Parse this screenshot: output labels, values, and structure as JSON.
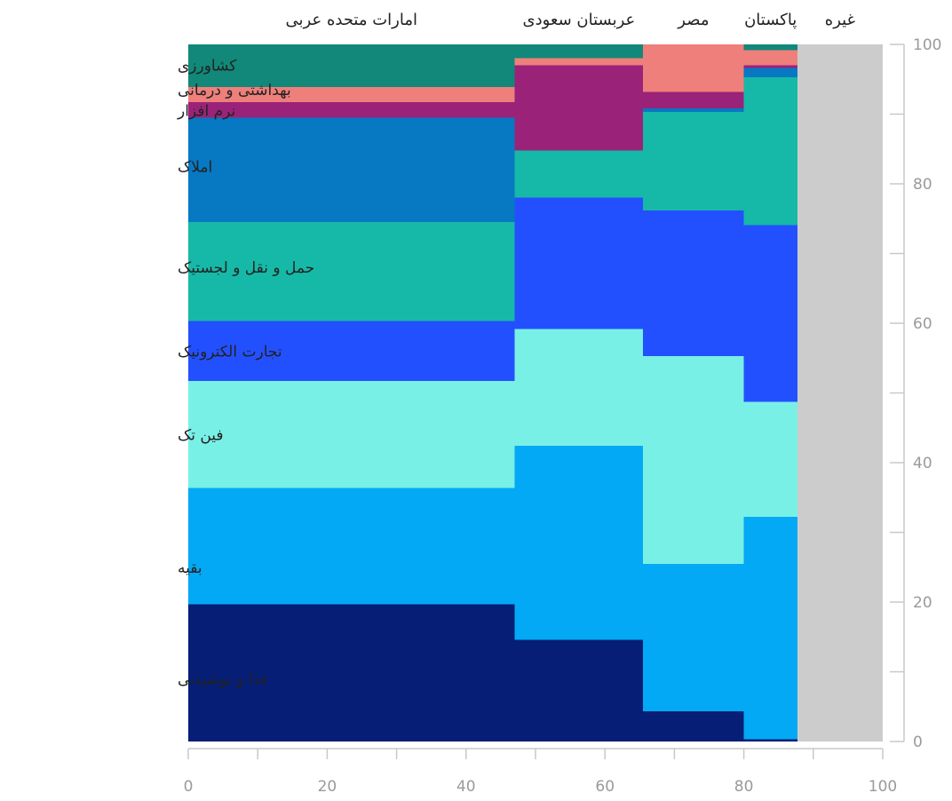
{
  "chart_data": {
    "type": "marimekko",
    "x_axis": {
      "range": [
        0,
        100
      ],
      "ticks": [
        0,
        20,
        40,
        60,
        80,
        100
      ],
      "minor_ticks": [
        10,
        30,
        50,
        70,
        90
      ]
    },
    "y_axis": {
      "range": [
        0,
        100
      ],
      "ticks": [
        0,
        20,
        40,
        60,
        80,
        100
      ],
      "minor_ticks": [
        10,
        30,
        50,
        70,
        90
      ],
      "position": "right"
    },
    "grid": false,
    "categories": [
      {
        "name": "غذا و نوشیدنی",
        "color": "#061e76"
      },
      {
        "name": "بقیه",
        "color": "#03a9f4"
      },
      {
        "name": "فین تک",
        "color": "#79f0e6"
      },
      {
        "name": "تجارت الکترونیک",
        "color": "#2350ff"
      },
      {
        "name": "حمل و نقل و لجستیک",
        "color": "#16b9a7"
      },
      {
        "name": "املاک",
        "color": "#0778c2"
      },
      {
        "name": "نرم افزار",
        "color": "#9b2279"
      },
      {
        "name": "بهداشتی و درمانی",
        "color": "#ef7f7b"
      },
      {
        "name": "کشاورزی",
        "color": "#118879"
      }
    ],
    "category_label_positions_y": [
      9,
      25,
      44,
      56,
      68,
      82.5,
      90.5,
      93.5,
      97
    ],
    "columns": [
      {
        "name": "امارات متحده عربی",
        "x0": 0,
        "x1": 47,
        "segments": [
          {
            "category": "غذا و نوشیدنی",
            "y0": 0,
            "y1": 19.7
          },
          {
            "category": "بقیه",
            "y0": 19.7,
            "y1": 36.4
          },
          {
            "category": "فین تک",
            "y0": 36.4,
            "y1": 51.7
          },
          {
            "category": "تجارت الکترونیک",
            "y0": 51.7,
            "y1": 60.3
          },
          {
            "category": "حمل و نقل و لجستیک",
            "y0": 60.3,
            "y1": 74.5
          },
          {
            "category": "املاک",
            "y0": 74.5,
            "y1": 89.5
          },
          {
            "category": "نرم افزار",
            "y0": 89.5,
            "y1": 91.7
          },
          {
            "category": "بهداشتی و درمانی",
            "y0": 91.7,
            "y1": 93.9
          },
          {
            "category": "کشاورزی",
            "y0": 93.9,
            "y1": 100
          }
        ]
      },
      {
        "name": "عربستان سعودی",
        "x0": 47,
        "x1": 65.5,
        "segments": [
          {
            "category": "غذا و نوشیدنی",
            "y0": 0,
            "y1": 14.6
          },
          {
            "category": "بقیه",
            "y0": 14.6,
            "y1": 42.4
          },
          {
            "category": "فین تک",
            "y0": 42.4,
            "y1": 59.2
          },
          {
            "category": "تجارت الکترونیک",
            "y0": 59.2,
            "y1": 78.0
          },
          {
            "category": "حمل و نقل و لجستیک",
            "y0": 78.0,
            "y1": 84.8
          },
          {
            "category": "نرم افزار",
            "y0": 84.8,
            "y1": 97.0
          },
          {
            "category": "بهداشتی و درمانی",
            "y0": 97.0,
            "y1": 98.0
          },
          {
            "category": "کشاورزی",
            "y0": 98.0,
            "y1": 100
          }
        ]
      },
      {
        "name": "مصر",
        "x0": 65.5,
        "x1": 80,
        "segments": [
          {
            "category": "غذا و نوشیدنی",
            "y0": 0,
            "y1": 4.3
          },
          {
            "category": "بقیه",
            "y0": 4.3,
            "y1": 25.5
          },
          {
            "category": "فین تک",
            "y0": 25.5,
            "y1": 55.3
          },
          {
            "category": "تجارت الکترونیک",
            "y0": 55.3,
            "y1": 76.2
          },
          {
            "category": "حمل و نقل و لجستیک",
            "y0": 76.2,
            "y1": 90.3
          },
          {
            "category": "املاک",
            "y0": 90.3,
            "y1": 90.8
          },
          {
            "category": "نرم افزار",
            "y0": 90.8,
            "y1": 93.2
          },
          {
            "category": "بهداشتی و درمانی",
            "y0": 93.2,
            "y1": 100
          }
        ]
      },
      {
        "name": "پاکستان",
        "x0": 80,
        "x1": 87.7,
        "segments": [
          {
            "category": "غذا و نوشیدنی",
            "y0": 0,
            "y1": 0.3
          },
          {
            "category": "بقیه",
            "y0": 0.3,
            "y1": 32.2
          },
          {
            "category": "فین تک",
            "y0": 32.2,
            "y1": 48.7
          },
          {
            "category": "تجارت الکترونیک",
            "y0": 48.7,
            "y1": 74.1
          },
          {
            "category": "حمل و نقل و لجستیک",
            "y0": 74.1,
            "y1": 95.3
          },
          {
            "category": "املاک",
            "y0": 95.3,
            "y1": 96.6
          },
          {
            "category": "نرم افزار",
            "y0": 96.6,
            "y1": 97.0
          },
          {
            "category": "بهداشتی و درمانی",
            "y0": 97.0,
            "y1": 99.2
          },
          {
            "category": "کشاورزی",
            "y0": 99.2,
            "y1": 100
          }
        ]
      },
      {
        "name": "غیره",
        "x0": 87.7,
        "x1": 100,
        "color": "#cccccc",
        "segments": [
          {
            "category": "غیره",
            "y0": 0,
            "y1": 100
          }
        ]
      }
    ]
  }
}
